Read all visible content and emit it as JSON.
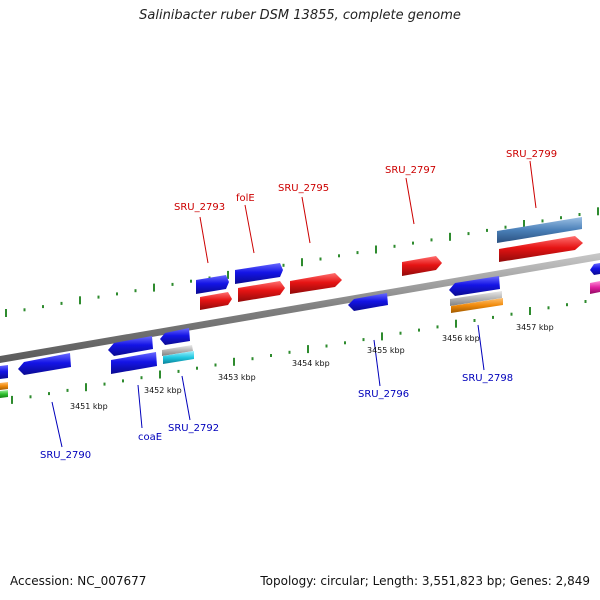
{
  "title": "Salinibacter ruber DSM 13855, complete genome",
  "footer": {
    "accession": "Accession: NC_007677",
    "summary": "Topology: circular; Length: 3,551,823 bp; Genes: 2,849"
  },
  "colors": {
    "backbone": "#8a8a8a",
    "tick": "#2e8b2e",
    "forward_label": "#cc0000",
    "reverse_label": "#0000bb",
    "blue": "#1414e6",
    "red": "#e61414",
    "steelblue": "#4a80b8",
    "orange": "#f08a0a",
    "gray": "#b4b4b4",
    "cyan": "#20c8e0",
    "magenta": "#e020a0",
    "green": "#30c030"
  },
  "scale_labels": [
    "3451 kbp",
    "3452 kbp",
    "3453 kbp",
    "3454 kbp",
    "3455 kbp",
    "3456 kbp",
    "3457 kbp"
  ],
  "gene_labels": {
    "forward": [
      "SRU_2793",
      "folE",
      "SRU_2795",
      "SRU_2797",
      "SRU_2799"
    ],
    "reverse": [
      "SRU_2790",
      "coaE",
      "SRU_2792",
      "SRU_2796",
      "SRU_2798"
    ]
  }
}
